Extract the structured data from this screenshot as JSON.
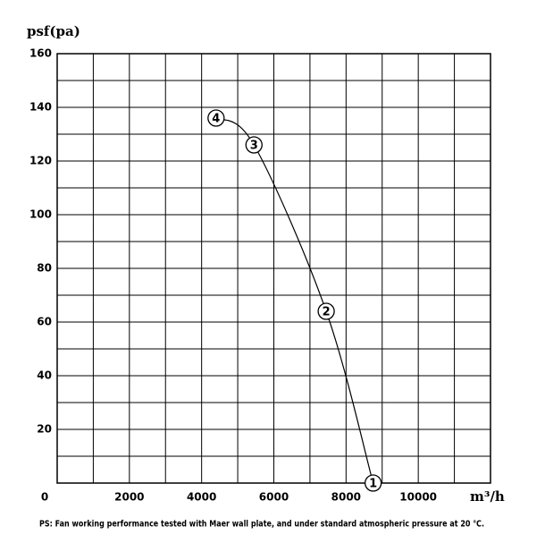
{
  "chart_data": {
    "type": "line",
    "y_label": "psf(pa)",
    "x_label": "m³/h",
    "note": "PS: Fan working performance tested with Maer wall plate, and under standard atmospheric pressure at 20 ℃.",
    "x": [
      4400,
      5450,
      7450,
      8750
    ],
    "series": [
      {
        "color": "#000000",
        "values": [
          136,
          126,
          64,
          0
        ],
        "point_labels": [
          "4",
          "3",
          "2",
          "1"
        ]
      }
    ],
    "xlim": [
      0,
      12000
    ],
    "ylim": [
      0,
      160
    ],
    "xticks": [
      0,
      2000,
      4000,
      6000,
      8000,
      10000
    ],
    "yticks": [
      20,
      40,
      60,
      80,
      100,
      120,
      140,
      160
    ],
    "x_minor_ticks": [
      1000,
      3000,
      5000,
      7000,
      9000,
      11000,
      12000
    ],
    "y_minor_ticks": [
      10,
      30,
      50,
      70,
      90,
      110,
      130,
      150
    ],
    "grid": true
  }
}
